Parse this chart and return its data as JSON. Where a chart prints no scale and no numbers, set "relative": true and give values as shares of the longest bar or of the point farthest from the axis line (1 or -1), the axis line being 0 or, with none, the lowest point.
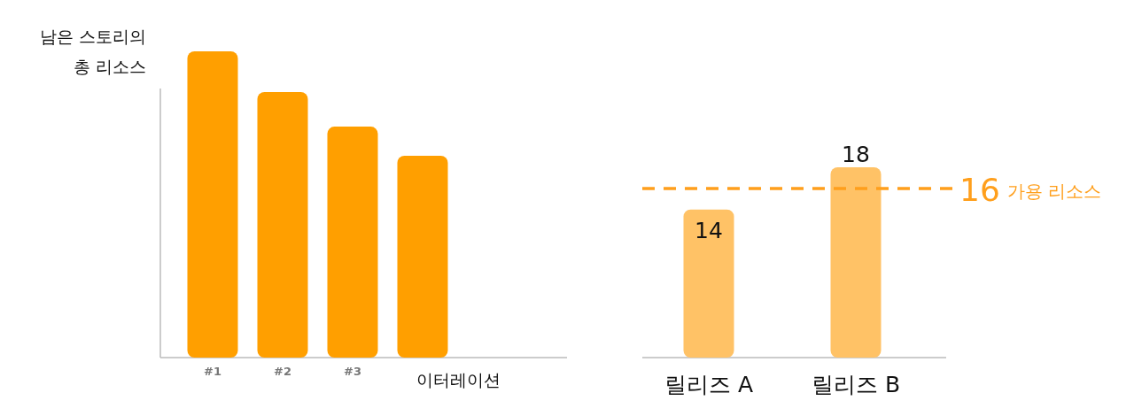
{
  "chart_data": [
    {
      "type": "bar",
      "relative": true,
      "ylabel": "남은 스토리의 총 리소스",
      "xlabel": "이터레이션",
      "categories": [
        "#1",
        "#2",
        "#3",
        null
      ],
      "color": "#ff9f00",
      "values": [
        1,
        0.867,
        0.754,
        0.659
      ]
    },
    {
      "type": "bar",
      "categories": [
        "릴리즈 A",
        "릴리즈 B"
      ],
      "color": "#ffc266",
      "values": [
        14,
        18
      ],
      "data_labels": true,
      "ref_lines": [
        {
          "axis": "y",
          "value": 16,
          "label": "16 가용 리소스",
          "color": "#ff9f1c",
          "line_style": "dashed"
        }
      ]
    }
  ]
}
